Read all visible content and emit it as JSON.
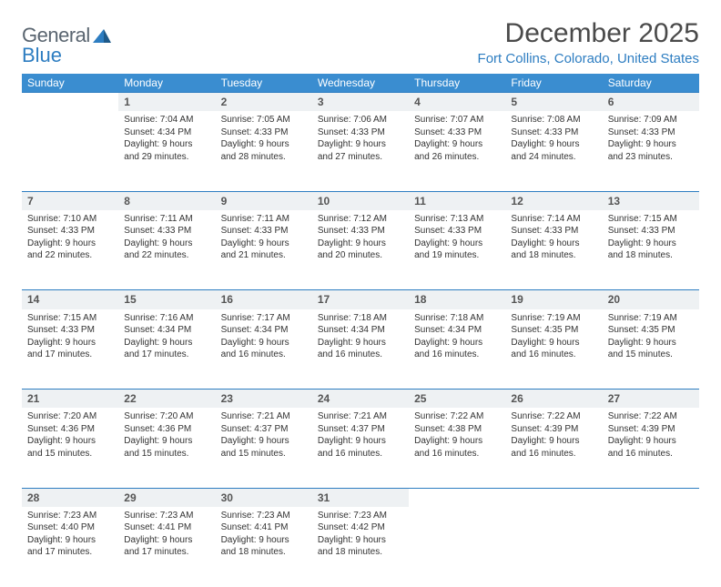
{
  "brand": {
    "part1": "General",
    "part2": "Blue"
  },
  "title": "December 2025",
  "location": "Fort Collins, Colorado, United States",
  "colors": {
    "header_bg": "#3a8dd0",
    "accent": "#2d7dc1",
    "daynum_bg": "#eef1f3",
    "text": "#333333",
    "muted": "#5a6570"
  },
  "daysOfWeek": [
    "Sunday",
    "Monday",
    "Tuesday",
    "Wednesday",
    "Thursday",
    "Friday",
    "Saturday"
  ],
  "weeks": [
    [
      null,
      {
        "n": "1",
        "sr": "7:04 AM",
        "ss": "4:34 PM",
        "dl": "9 hours and 29 minutes."
      },
      {
        "n": "2",
        "sr": "7:05 AM",
        "ss": "4:33 PM",
        "dl": "9 hours and 28 minutes."
      },
      {
        "n": "3",
        "sr": "7:06 AM",
        "ss": "4:33 PM",
        "dl": "9 hours and 27 minutes."
      },
      {
        "n": "4",
        "sr": "7:07 AM",
        "ss": "4:33 PM",
        "dl": "9 hours and 26 minutes."
      },
      {
        "n": "5",
        "sr": "7:08 AM",
        "ss": "4:33 PM",
        "dl": "9 hours and 24 minutes."
      },
      {
        "n": "6",
        "sr": "7:09 AM",
        "ss": "4:33 PM",
        "dl": "9 hours and 23 minutes."
      }
    ],
    [
      {
        "n": "7",
        "sr": "7:10 AM",
        "ss": "4:33 PM",
        "dl": "9 hours and 22 minutes."
      },
      {
        "n": "8",
        "sr": "7:11 AM",
        "ss": "4:33 PM",
        "dl": "9 hours and 22 minutes."
      },
      {
        "n": "9",
        "sr": "7:11 AM",
        "ss": "4:33 PM",
        "dl": "9 hours and 21 minutes."
      },
      {
        "n": "10",
        "sr": "7:12 AM",
        "ss": "4:33 PM",
        "dl": "9 hours and 20 minutes."
      },
      {
        "n": "11",
        "sr": "7:13 AM",
        "ss": "4:33 PM",
        "dl": "9 hours and 19 minutes."
      },
      {
        "n": "12",
        "sr": "7:14 AM",
        "ss": "4:33 PM",
        "dl": "9 hours and 18 minutes."
      },
      {
        "n": "13",
        "sr": "7:15 AM",
        "ss": "4:33 PM",
        "dl": "9 hours and 18 minutes."
      }
    ],
    [
      {
        "n": "14",
        "sr": "7:15 AM",
        "ss": "4:33 PM",
        "dl": "9 hours and 17 minutes."
      },
      {
        "n": "15",
        "sr": "7:16 AM",
        "ss": "4:34 PM",
        "dl": "9 hours and 17 minutes."
      },
      {
        "n": "16",
        "sr": "7:17 AM",
        "ss": "4:34 PM",
        "dl": "9 hours and 16 minutes."
      },
      {
        "n": "17",
        "sr": "7:18 AM",
        "ss": "4:34 PM",
        "dl": "9 hours and 16 minutes."
      },
      {
        "n": "18",
        "sr": "7:18 AM",
        "ss": "4:34 PM",
        "dl": "9 hours and 16 minutes."
      },
      {
        "n": "19",
        "sr": "7:19 AM",
        "ss": "4:35 PM",
        "dl": "9 hours and 16 minutes."
      },
      {
        "n": "20",
        "sr": "7:19 AM",
        "ss": "4:35 PM",
        "dl": "9 hours and 15 minutes."
      }
    ],
    [
      {
        "n": "21",
        "sr": "7:20 AM",
        "ss": "4:36 PM",
        "dl": "9 hours and 15 minutes."
      },
      {
        "n": "22",
        "sr": "7:20 AM",
        "ss": "4:36 PM",
        "dl": "9 hours and 15 minutes."
      },
      {
        "n": "23",
        "sr": "7:21 AM",
        "ss": "4:37 PM",
        "dl": "9 hours and 15 minutes."
      },
      {
        "n": "24",
        "sr": "7:21 AM",
        "ss": "4:37 PM",
        "dl": "9 hours and 16 minutes."
      },
      {
        "n": "25",
        "sr": "7:22 AM",
        "ss": "4:38 PM",
        "dl": "9 hours and 16 minutes."
      },
      {
        "n": "26",
        "sr": "7:22 AM",
        "ss": "4:39 PM",
        "dl": "9 hours and 16 minutes."
      },
      {
        "n": "27",
        "sr": "7:22 AM",
        "ss": "4:39 PM",
        "dl": "9 hours and 16 minutes."
      }
    ],
    [
      {
        "n": "28",
        "sr": "7:23 AM",
        "ss": "4:40 PM",
        "dl": "9 hours and 17 minutes."
      },
      {
        "n": "29",
        "sr": "7:23 AM",
        "ss": "4:41 PM",
        "dl": "9 hours and 17 minutes."
      },
      {
        "n": "30",
        "sr": "7:23 AM",
        "ss": "4:41 PM",
        "dl": "9 hours and 18 minutes."
      },
      {
        "n": "31",
        "sr": "7:23 AM",
        "ss": "4:42 PM",
        "dl": "9 hours and 18 minutes."
      },
      null,
      null,
      null
    ]
  ],
  "labels": {
    "sunrise": "Sunrise:",
    "sunset": "Sunset:",
    "daylight": "Daylight:"
  }
}
